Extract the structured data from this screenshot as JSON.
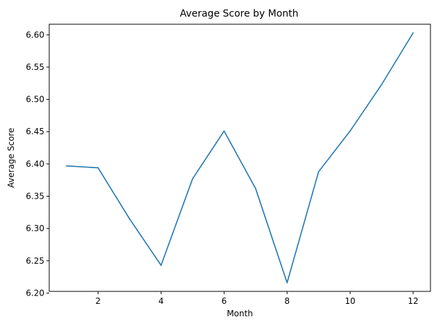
{
  "chart_data": {
    "type": "line",
    "title": "Average Score by Month",
    "xlabel": "Month",
    "ylabel": "Average Score",
    "x": [
      1,
      2,
      3,
      4,
      5,
      6,
      7,
      8,
      9,
      10,
      11,
      12
    ],
    "series": [
      {
        "values": [
          6.397,
          6.394,
          6.315,
          6.243,
          6.377,
          6.451,
          6.362,
          6.216,
          6.388,
          6.451,
          6.523,
          6.603
        ],
        "color": "#1f77b4"
      }
    ],
    "xlim": [
      0.45,
      12.55
    ],
    "ylim": [
      6.2026,
      6.6164
    ],
    "xticks": [
      2,
      4,
      6,
      8,
      10,
      12
    ],
    "xtick_labels": [
      "2",
      "4",
      "6",
      "8",
      "10",
      "12"
    ],
    "yticks": [
      6.2,
      6.25,
      6.3,
      6.35,
      6.4,
      6.45,
      6.5,
      6.55,
      6.6
    ],
    "ytick_labels": [
      "6.20",
      "6.25",
      "6.30",
      "6.35",
      "6.40",
      "6.45",
      "6.50",
      "6.55",
      "6.60"
    ],
    "grid": false,
    "legend": "none"
  }
}
